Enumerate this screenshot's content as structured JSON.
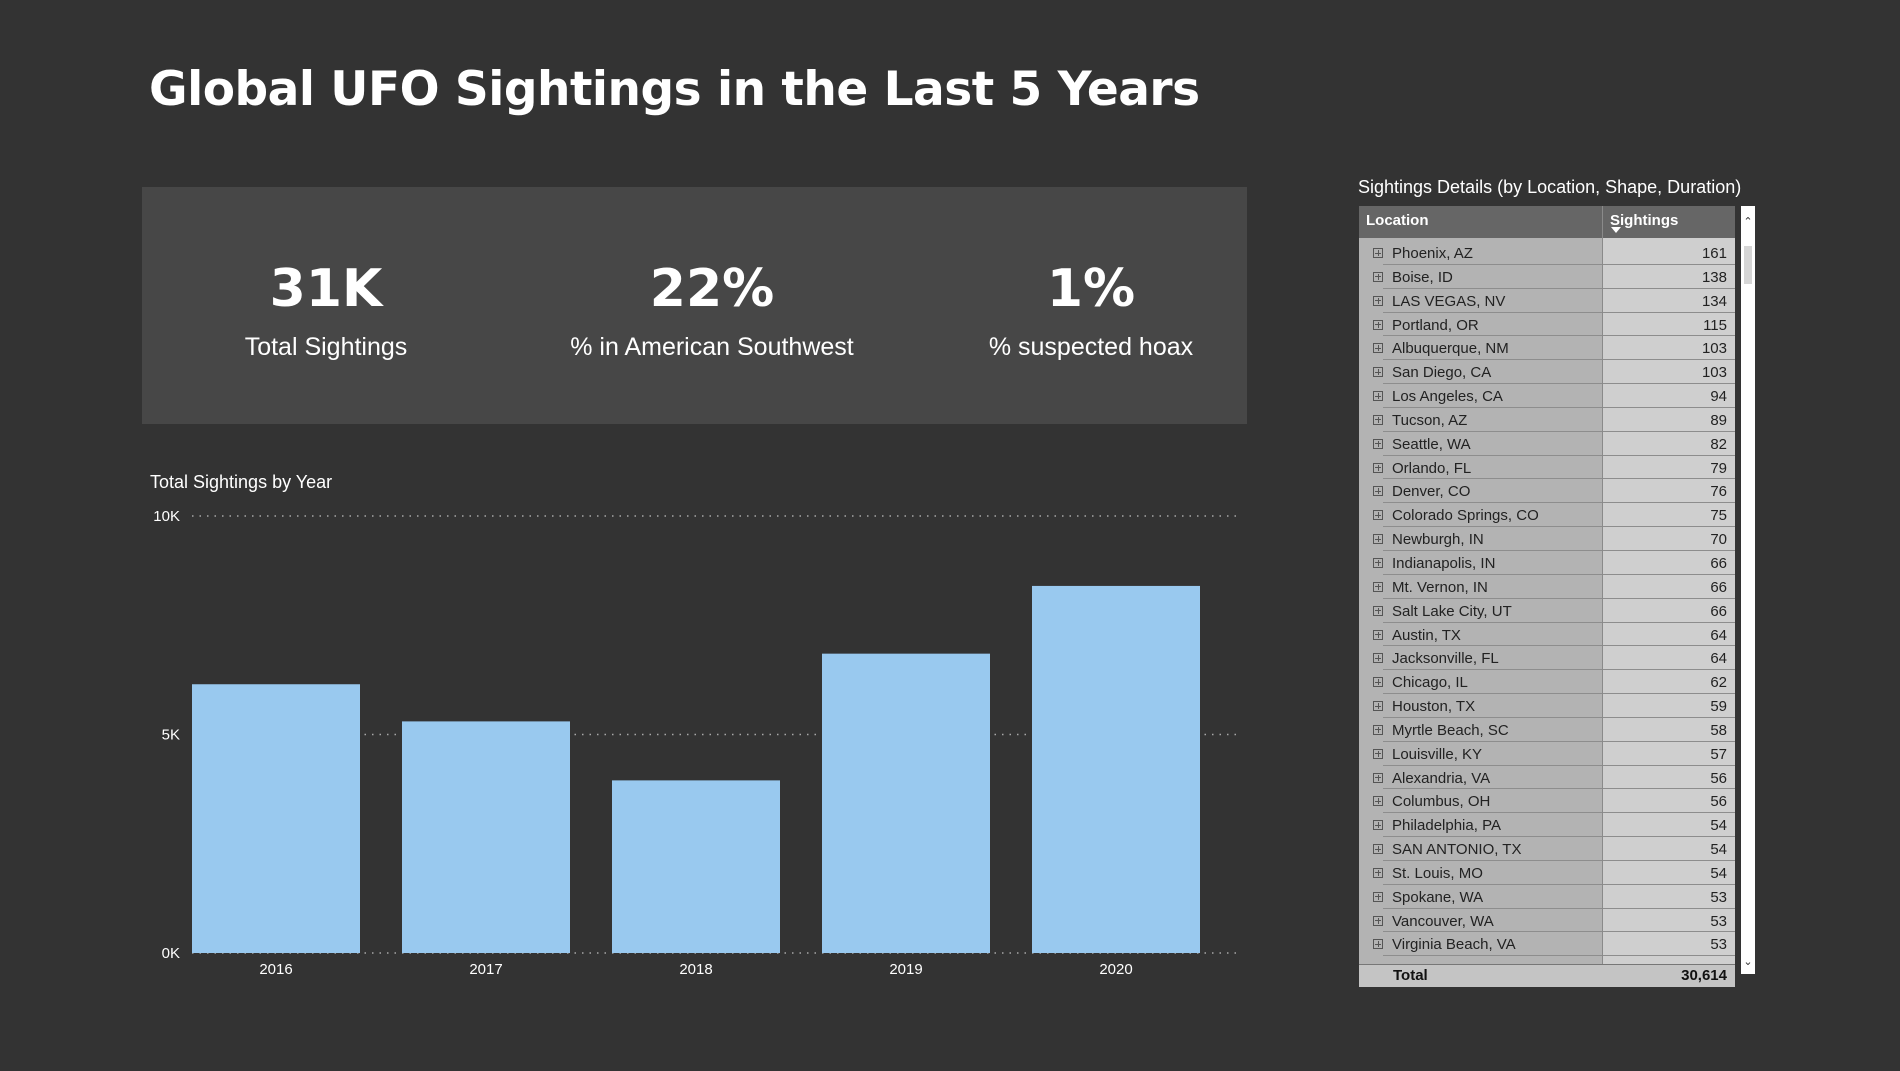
{
  "title": "Global UFO Sightings in the Last 5 Years",
  "kpis": [
    {
      "value": "31K",
      "label": "Total Sightings"
    },
    {
      "value": "22%",
      "label": "% in American Southwest"
    },
    {
      "value": "1%",
      "label": "% suspected hoax"
    }
  ],
  "chart_data": {
    "type": "bar",
    "title": "Total Sightings by Year",
    "categories": [
      "2016",
      "2017",
      "2018",
      "2019",
      "2020"
    ],
    "values": [
      6150,
      5300,
      3950,
      6850,
      8400
    ],
    "ylim": [
      0,
      10000
    ],
    "yticks": [
      "0K",
      "5K",
      "10K"
    ],
    "grid": true,
    "color": "#99c9ef"
  },
  "table": {
    "title": "Sightings Details (by Location, Shape, Duration)",
    "columns": [
      "Location",
      "Sightings"
    ],
    "rows": [
      {
        "location": "Phoenix, AZ",
        "sightings": "161"
      },
      {
        "location": "Boise, ID",
        "sightings": "138"
      },
      {
        "location": "LAS VEGAS, NV",
        "sightings": "134"
      },
      {
        "location": "Portland, OR",
        "sightings": "115"
      },
      {
        "location": "Albuquerque, NM",
        "sightings": "103"
      },
      {
        "location": "San Diego, CA",
        "sightings": "103"
      },
      {
        "location": "Los Angeles, CA",
        "sightings": "94"
      },
      {
        "location": "Tucson, AZ",
        "sightings": "89"
      },
      {
        "location": "Seattle, WA",
        "sightings": "82"
      },
      {
        "location": "Orlando, FL",
        "sightings": "79"
      },
      {
        "location": "Denver, CO",
        "sightings": "76"
      },
      {
        "location": "Colorado Springs, CO",
        "sightings": "75"
      },
      {
        "location": "Newburgh, IN",
        "sightings": "70"
      },
      {
        "location": "Indianapolis, IN",
        "sightings": "66"
      },
      {
        "location": "Mt. Vernon, IN",
        "sightings": "66"
      },
      {
        "location": "Salt Lake City, UT",
        "sightings": "66"
      },
      {
        "location": "Austin, TX",
        "sightings": "64"
      },
      {
        "location": "Jacksonville, FL",
        "sightings": "64"
      },
      {
        "location": "Chicago, IL",
        "sightings": "62"
      },
      {
        "location": "Houston, TX",
        "sightings": "59"
      },
      {
        "location": "Myrtle Beach, SC",
        "sightings": "58"
      },
      {
        "location": "Louisville, KY",
        "sightings": "57"
      },
      {
        "location": "Alexandria, VA",
        "sightings": "56"
      },
      {
        "location": "Columbus, OH",
        "sightings": "56"
      },
      {
        "location": "Philadelphia, PA",
        "sightings": "54"
      },
      {
        "location": "SAN ANTONIO, TX",
        "sightings": "54"
      },
      {
        "location": "St. Louis, MO",
        "sightings": "54"
      },
      {
        "location": "Spokane, WA",
        "sightings": "53"
      },
      {
        "location": "Vancouver, WA",
        "sightings": "53"
      },
      {
        "location": "Virginia Beach, VA",
        "sightings": "53"
      }
    ],
    "total_label": "Total",
    "total_value": "30,614"
  },
  "icons": {
    "expand": "plus-box-icon",
    "sort": "sort-descending-icon",
    "scroll_up": "chevron-up-icon",
    "scroll_down": "chevron-down-icon"
  }
}
